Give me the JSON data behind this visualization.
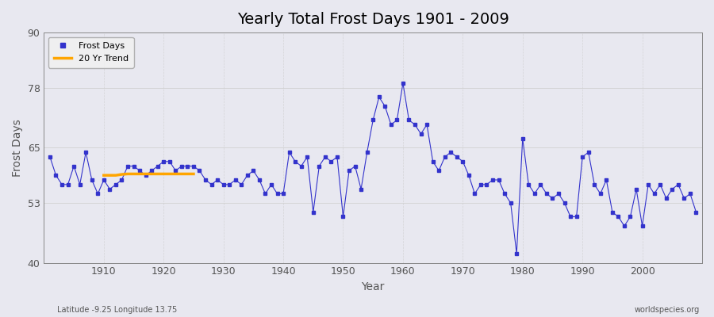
{
  "title": "Yearly Total Frost Days 1901 - 2009",
  "xlabel": "Year",
  "ylabel": "Frost Days",
  "subtitle": "Latitude -9.25 Longitude 13.75",
  "watermark": "worldspecies.org",
  "ylim": [
    40,
    90
  ],
  "yticks": [
    40,
    53,
    65,
    78,
    90
  ],
  "xlim": [
    1900,
    2010
  ],
  "bg_color": "#e8e8f0",
  "plot_bg_color": "#e8e8f0",
  "line_color": "#3333cc",
  "trend_color": "#ffa500",
  "years": [
    1901,
    1902,
    1903,
    1904,
    1905,
    1906,
    1907,
    1908,
    1909,
    1910,
    1911,
    1912,
    1913,
    1914,
    1915,
    1916,
    1917,
    1918,
    1919,
    1920,
    1921,
    1922,
    1923,
    1924,
    1925,
    1926,
    1927,
    1928,
    1929,
    1930,
    1931,
    1932,
    1933,
    1934,
    1935,
    1936,
    1937,
    1938,
    1939,
    1940,
    1941,
    1942,
    1943,
    1944,
    1945,
    1946,
    1947,
    1948,
    1949,
    1950,
    1951,
    1952,
    1953,
    1954,
    1955,
    1956,
    1957,
    1958,
    1959,
    1960,
    1961,
    1962,
    1963,
    1964,
    1965,
    1966,
    1967,
    1968,
    1969,
    1970,
    1971,
    1972,
    1973,
    1974,
    1975,
    1976,
    1977,
    1978,
    1979,
    1980,
    1981,
    1982,
    1983,
    1984,
    1985,
    1986,
    1987,
    1988,
    1989,
    1990,
    1991,
    1992,
    1993,
    1994,
    1995,
    1996,
    1997,
    1998,
    1999,
    2000,
    2001,
    2002,
    2003,
    2004,
    2005,
    2006,
    2007,
    2008,
    2009
  ],
  "frost_days": [
    63,
    59,
    57,
    57,
    61,
    57,
    64,
    58,
    55,
    58,
    56,
    57,
    58,
    61,
    61,
    60,
    59,
    60,
    61,
    62,
    62,
    60,
    61,
    61,
    61,
    60,
    58,
    57,
    58,
    57,
    57,
    58,
    57,
    59,
    60,
    58,
    55,
    57,
    55,
    55,
    64,
    62,
    61,
    63,
    51,
    61,
    63,
    62,
    63,
    50,
    60,
    61,
    56,
    64,
    71,
    76,
    74,
    70,
    71,
    79,
    71,
    70,
    68,
    70,
    62,
    60,
    63,
    64,
    63,
    62,
    59,
    55,
    57,
    57,
    58,
    58,
    55,
    53,
    42,
    67,
    57,
    55,
    57,
    55,
    54,
    55,
    53,
    50,
    50,
    63,
    64,
    57,
    55,
    58,
    51,
    50,
    48,
    50,
    56,
    48,
    57,
    55,
    57,
    54,
    56,
    57,
    54,
    55,
    51
  ],
  "trend_years": [
    1910,
    1911,
    1912,
    1913,
    1914,
    1915,
    1916,
    1917,
    1918,
    1919,
    1920,
    1921,
    1922,
    1923,
    1924,
    1925
  ],
  "trend_values": [
    59.0,
    59.0,
    59.0,
    59.2,
    59.3,
    59.3,
    59.3,
    59.3,
    59.3,
    59.3,
    59.3,
    59.3,
    59.3,
    59.3,
    59.3,
    59.3
  ],
  "grid_color": "#cccccc",
  "tick_color": "#555555",
  "legend_bg": "#f0f0f0",
  "xticks": [
    1910,
    1920,
    1930,
    1940,
    1950,
    1960,
    1970,
    1980,
    1990,
    2000
  ]
}
